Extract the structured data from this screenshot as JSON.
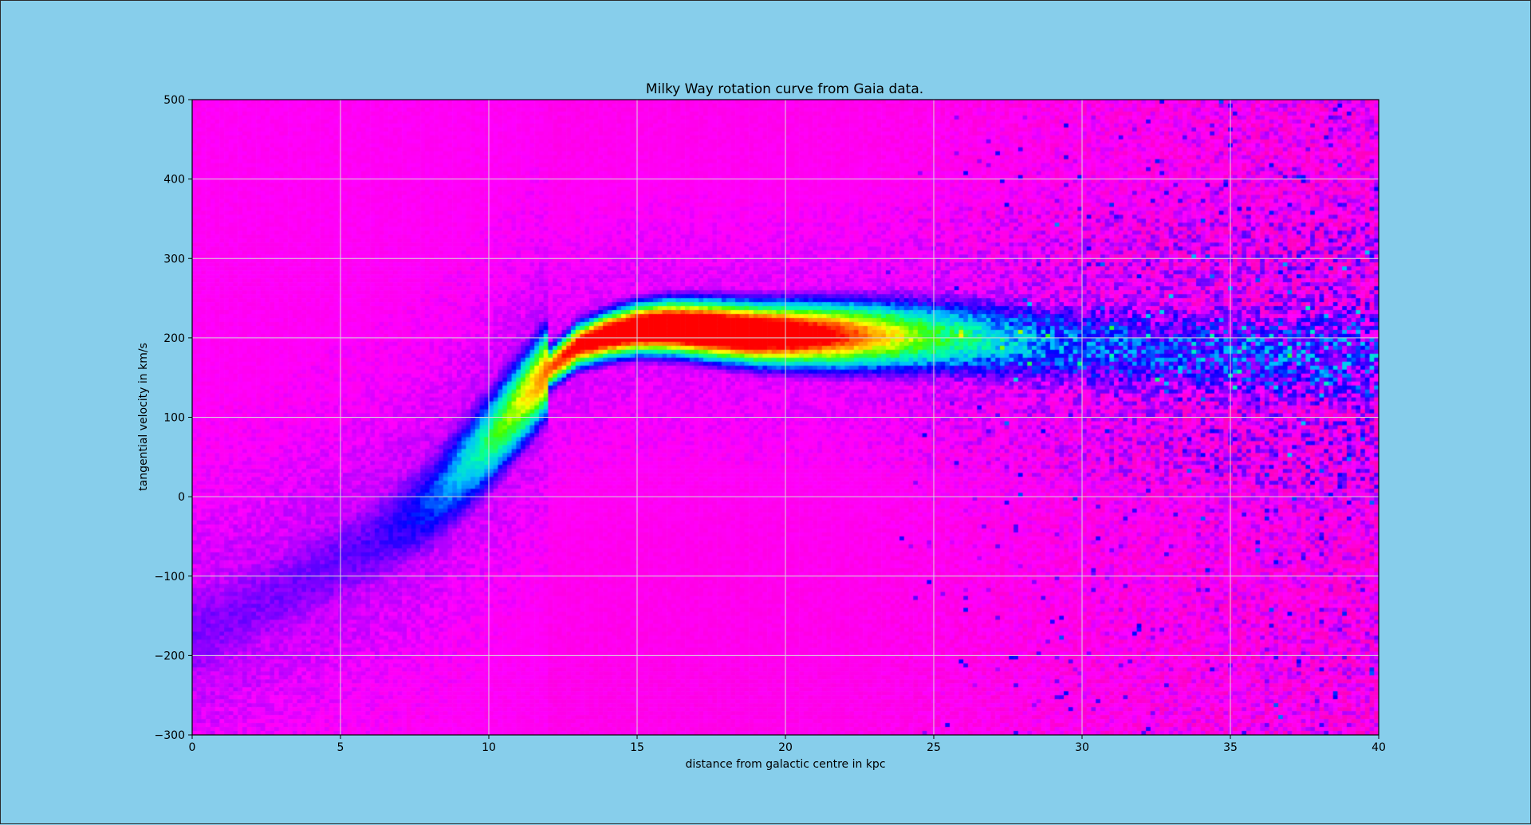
{
  "figure": {
    "background": "#87ceeb"
  },
  "chart_data": {
    "type": "heatmap",
    "title": "Milky Way rotation curve from Gaia data.",
    "xlabel": "distance from galactic centre in kpc",
    "ylabel": "tangential velocity in km/s",
    "xlim": [
      0,
      40
    ],
    "ylim": [
      -300,
      500
    ],
    "xticks": [
      0,
      5,
      10,
      15,
      20,
      25,
      30,
      35,
      40
    ],
    "yticks": [
      -300,
      -200,
      -100,
      0,
      100,
      200,
      300,
      400,
      500
    ],
    "xtick_labels": [
      "0",
      "5",
      "10",
      "15",
      "20",
      "25",
      "30",
      "35",
      "40"
    ],
    "ytick_labels": [
      "−300",
      "−200",
      "−100",
      "0",
      "100",
      "200",
      "300",
      "400",
      "500"
    ],
    "grid": true,
    "colormap": "gist_rainbow (reversed)",
    "colormap_stops": [
      "#ff00bf",
      "#ff00ff",
      "#8000ff",
      "#0000ff",
      "#00c0ff",
      "#00ffaa",
      "#40ff00",
      "#ffff00",
      "#ff8000",
      "#ff0000"
    ],
    "ridge": {
      "x_kpc": [
        0,
        2,
        4,
        6,
        8,
        10,
        12,
        13,
        14,
        15,
        16,
        17,
        18,
        19,
        20,
        22,
        24,
        26,
        28,
        30,
        33,
        36,
        40
      ],
      "v_kms": [
        -175,
        -140,
        -100,
        -60,
        -10,
        70,
        160,
        190,
        203,
        211,
        213,
        211,
        208,
        205,
        204,
        203,
        202,
        199,
        195,
        190,
        182,
        178,
        175
      ]
    }
  }
}
